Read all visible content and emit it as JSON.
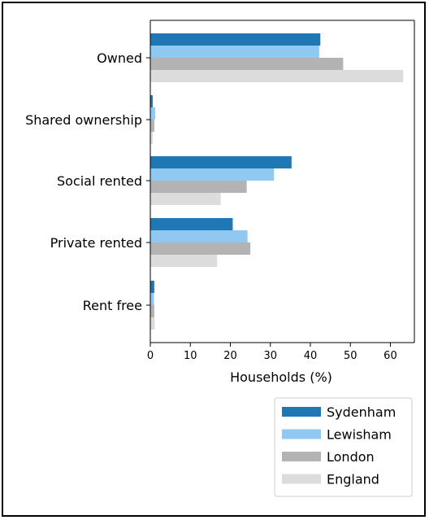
{
  "chart_data": {
    "type": "bar",
    "orientation": "horizontal",
    "categories": [
      "Owned",
      "Shared ownership",
      "Social rented",
      "Private rented",
      "Rent free"
    ],
    "series": [
      {
        "name": "Sydenham",
        "color": "#1f77b4",
        "values": [
          42.5,
          0.6,
          35.3,
          20.6,
          1.0
        ]
      },
      {
        "name": "Lewisham",
        "color": "#8fc8f0",
        "values": [
          42.2,
          1.2,
          30.9,
          24.3,
          0.9
        ]
      },
      {
        "name": "London",
        "color": "#b3b3b3",
        "values": [
          48.2,
          1.0,
          24.1,
          25.0,
          1.0
        ]
      },
      {
        "name": "England",
        "color": "#dcdcdc",
        "values": [
          63.2,
          0.6,
          17.6,
          16.7,
          1.1
        ]
      }
    ],
    "xlabel": "Households (%)",
    "xlim": [
      0,
      66
    ],
    "xticks": [
      0,
      10,
      20,
      30,
      40,
      50,
      60
    ],
    "legend_position": "bottom-right",
    "grid": false
  }
}
